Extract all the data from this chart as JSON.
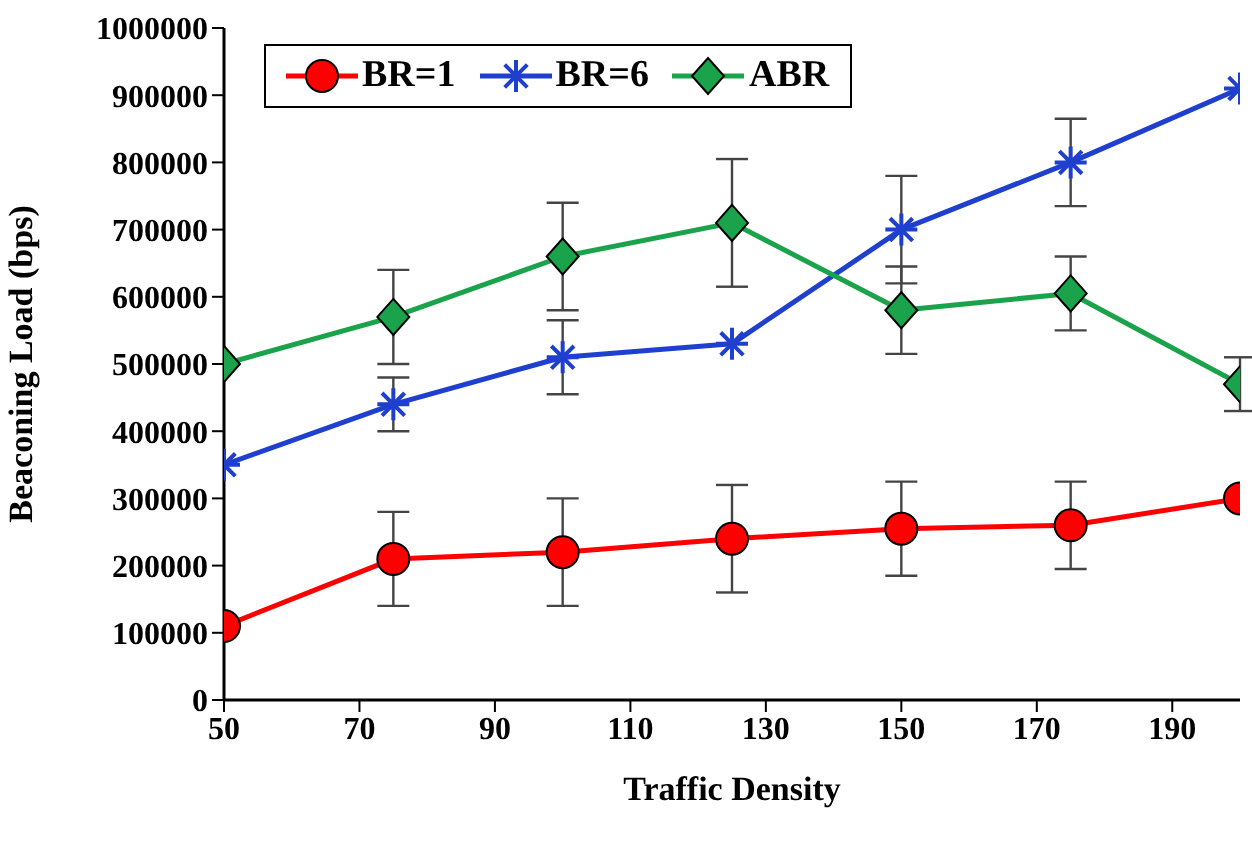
{
  "chart_data": {
    "type": "line",
    "xlabel": "Traffic Density",
    "ylabel": "Beaconing Load (bps)",
    "x": [
      50,
      75,
      100,
      125,
      150,
      175,
      200
    ],
    "xlim": [
      50,
      200
    ],
    "xticks": [
      50,
      70,
      90,
      110,
      130,
      150,
      170,
      190
    ],
    "ylim": [
      0,
      1000000
    ],
    "yticks": [
      0,
      100000,
      200000,
      300000,
      400000,
      500000,
      600000,
      700000,
      800000,
      900000,
      1000000
    ],
    "grid": false,
    "legend": "top left",
    "line_style": "solid",
    "series": [
      {
        "name": "BR=1",
        "color": "#ff0000",
        "marker": "circle",
        "values": [
          110000,
          210000,
          220000,
          240000,
          255000,
          260000,
          300000
        ],
        "errors": [
          null,
          70000,
          80000,
          80000,
          70000,
          65000,
          null
        ]
      },
      {
        "name": "BR=6",
        "color": "#1f3fcf",
        "marker": "cross",
        "values": [
          350000,
          440000,
          510000,
          530000,
          700000,
          800000,
          910000
        ],
        "errors": [
          null,
          40000,
          55000,
          null,
          80000,
          65000,
          null
        ]
      },
      {
        "name": "ABR",
        "color": "#1aa34a",
        "marker": "diamond",
        "values": [
          500000,
          570000,
          660000,
          710000,
          580000,
          605000,
          470000
        ],
        "errors": [
          null,
          70000,
          80000,
          95000,
          65000,
          55000,
          40000
        ]
      }
    ]
  }
}
